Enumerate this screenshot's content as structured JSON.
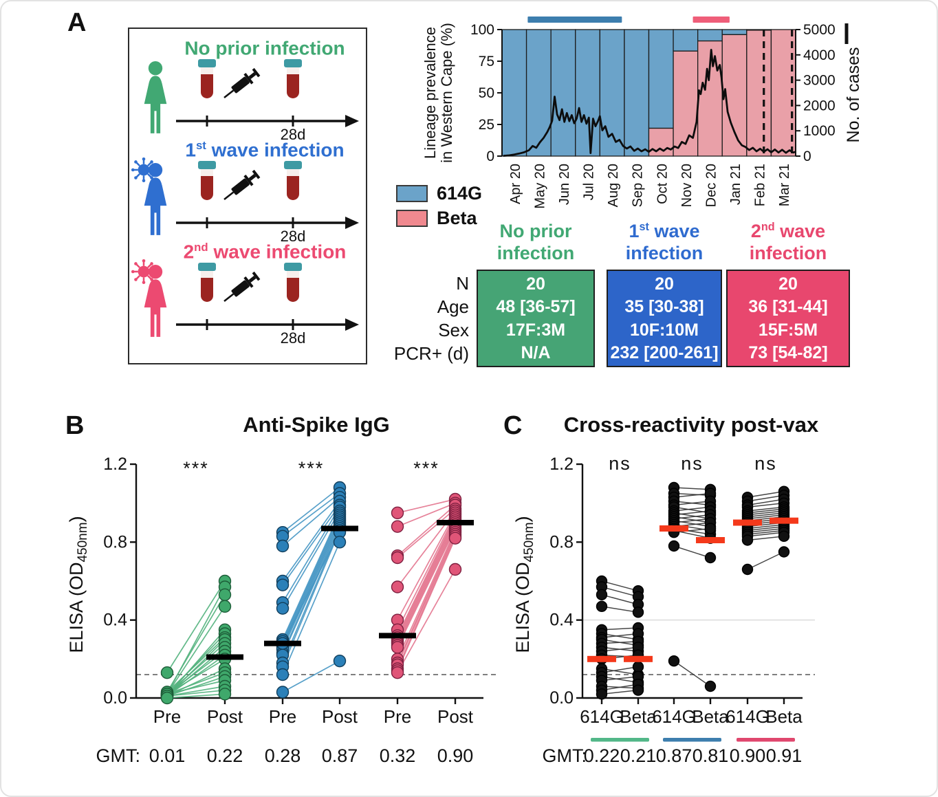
{
  "panels": {
    "a_label": "A",
    "b_label": "B",
    "c_label": "C"
  },
  "panel_a": {
    "groups": [
      {
        "title_pre": "No prior infection",
        "title_sup": "",
        "title_post": "",
        "color": "#41a873",
        "virus": false,
        "timeline_label": "28d"
      },
      {
        "title_pre": "1",
        "title_sup": "st",
        "title_post": " wave infection",
        "color": "#2f6fd0",
        "virus": true,
        "timeline_label": "28d"
      },
      {
        "title_pre": "2",
        "title_sup": "nd",
        "title_post": " wave infection",
        "color": "#ec4a71",
        "virus": true,
        "timeline_label": "28d"
      }
    ]
  },
  "legend": {
    "items": [
      {
        "label": "614G",
        "color": "#6ba3c9"
      },
      {
        "label": "Beta",
        "color": "#f0898f"
      }
    ]
  },
  "cohort_table": {
    "row_labels": [
      "N",
      "Age",
      "Sex",
      "PCR+ (d)"
    ],
    "columns": [
      {
        "h1_pre": "No prior",
        "h1_sup": "",
        "h1_post": "",
        "h2": "infection",
        "text_color": "#41a873",
        "box_color": "#46a475",
        "values": [
          "20",
          "48 [36-57]",
          "17F:3M",
          "N/A"
        ]
      },
      {
        "h1_pre": "1",
        "h1_sup": "st",
        "h1_post": " wave",
        "h2": "infection",
        "text_color": "#2f6bcf",
        "box_color": "#2d65c9",
        "values": [
          "20",
          "35 [30-38]",
          "10F:10M",
          "232 [200-261]"
        ]
      },
      {
        "h1_pre": "2",
        "h1_sup": "nd",
        "h1_post": " wave",
        "h2": "infection",
        "text_color": "#e8476e",
        "box_color": "#e8476e",
        "values": [
          "20",
          "36 [31-44]",
          "15F:5M",
          "73 [54-82]"
        ]
      }
    ]
  },
  "chart_data": [
    {
      "id": "prevalence",
      "type": "bar+line",
      "ylabel_left_lines": [
        "Lineage prevalence",
        "in Western Cape  (%)"
      ],
      "ylabel_right": "No. of cases",
      "yleft_ticks": [
        0,
        25,
        50,
        75,
        100
      ],
      "yright_ticks": [
        0,
        1000,
        2000,
        3000,
        4000,
        5000
      ],
      "yleft_lim": [
        0,
        100
      ],
      "yright_lim": [
        0,
        5000
      ],
      "categories": [
        "Apr 20",
        "May 20",
        "Jun 20",
        "Jul 20",
        "Aug 20",
        "Sep 20",
        "Oct 20",
        "Nov 20",
        "Dec 20",
        "Jan 21",
        "Feb 21",
        "Mar 21"
      ],
      "series": [
        {
          "name": "614G",
          "color": "#6ba3c9",
          "values": [
            100,
            100,
            100,
            100,
            100,
            100,
            78,
            17,
            9,
            4,
            0.5,
            0
          ]
        },
        {
          "name": "Beta",
          "color": "#e9a0a8",
          "values": [
            0,
            0,
            0,
            0,
            0,
            0,
            22,
            83,
            91,
            96,
            99.5,
            100
          ]
        }
      ],
      "wave_spans": [
        {
          "name": "1st wave",
          "color": "#3d7eae",
          "from": 1.05,
          "to": 4.9
        },
        {
          "name": "2nd wave",
          "color": "#ef5e79",
          "from": 7.8,
          "to": 9.3
        }
      ],
      "dashed_verticals": [
        10.7,
        11.85
      ],
      "cases_line": [
        [
          0.05,
          10
        ],
        [
          0.3,
          30
        ],
        [
          0.5,
          60
        ],
        [
          0.7,
          100
        ],
        [
          0.9,
          150
        ],
        [
          1.1,
          230
        ],
        [
          1.25,
          400
        ],
        [
          1.4,
          330
        ],
        [
          1.55,
          550
        ],
        [
          1.7,
          720
        ],
        [
          1.85,
          950
        ],
        [
          1.95,
          1150
        ],
        [
          2.05,
          1400
        ],
        [
          2.15,
          2350
        ],
        [
          2.25,
          1650
        ],
        [
          2.35,
          1420
        ],
        [
          2.45,
          1850
        ],
        [
          2.55,
          1350
        ],
        [
          2.65,
          1700
        ],
        [
          2.75,
          1380
        ],
        [
          2.85,
          1620
        ],
        [
          2.95,
          1300
        ],
        [
          3.05,
          1480
        ],
        [
          3.15,
          1900
        ],
        [
          3.25,
          1350
        ],
        [
          3.35,
          1620
        ],
        [
          3.45,
          1280
        ],
        [
          3.55,
          1520
        ],
        [
          3.62,
          120
        ],
        [
          3.72,
          1480
        ],
        [
          3.82,
          1180
        ],
        [
          3.92,
          1380
        ],
        [
          4.0,
          1580
        ],
        [
          4.1,
          1020
        ],
        [
          4.22,
          1180
        ],
        [
          4.35,
          760
        ],
        [
          4.5,
          880
        ],
        [
          4.65,
          560
        ],
        [
          4.8,
          640
        ],
        [
          4.95,
          400
        ],
        [
          5.1,
          300
        ],
        [
          5.25,
          380
        ],
        [
          5.4,
          210
        ],
        [
          5.55,
          300
        ],
        [
          5.7,
          190
        ],
        [
          5.85,
          270
        ],
        [
          6.0,
          170
        ],
        [
          6.15,
          280
        ],
        [
          6.3,
          190
        ],
        [
          6.45,
          300
        ],
        [
          6.6,
          210
        ],
        [
          6.75,
          320
        ],
        [
          6.9,
          260
        ],
        [
          7.05,
          380
        ],
        [
          7.2,
          320
        ],
        [
          7.35,
          560
        ],
        [
          7.5,
          480
        ],
        [
          7.65,
          820
        ],
        [
          7.8,
          720
        ],
        [
          7.95,
          1350
        ],
        [
          8.05,
          2600
        ],
        [
          8.12,
          2450
        ],
        [
          8.2,
          2900
        ],
        [
          8.3,
          2620
        ],
        [
          8.38,
          3450
        ],
        [
          8.45,
          3000
        ],
        [
          8.55,
          4200
        ],
        [
          8.62,
          3550
        ],
        [
          8.7,
          3950
        ],
        [
          8.8,
          3380
        ],
        [
          8.9,
          3600
        ],
        [
          8.97,
          3100
        ],
        [
          9.05,
          2250
        ],
        [
          9.12,
          2650
        ],
        [
          9.22,
          1750
        ],
        [
          9.35,
          1320
        ],
        [
          9.5,
          950
        ],
        [
          9.65,
          620
        ],
        [
          9.8,
          430
        ],
        [
          9.95,
          360
        ],
        [
          10.1,
          240
        ],
        [
          10.25,
          330
        ],
        [
          10.4,
          190
        ],
        [
          10.55,
          290
        ],
        [
          10.7,
          170
        ],
        [
          10.85,
          270
        ],
        [
          11.0,
          150
        ],
        [
          11.15,
          260
        ],
        [
          11.3,
          140
        ],
        [
          11.45,
          250
        ],
        [
          11.6,
          130
        ],
        [
          11.75,
          230
        ],
        [
          11.9,
          140
        ],
        [
          12.0,
          170
        ]
      ]
    },
    {
      "id": "anti_spike",
      "type": "paired-scatter",
      "title": "Anti-Spike IgG",
      "ylabel_parts": [
        "ELISA (OD",
        "450nm",
        ")"
      ],
      "ylim": [
        0,
        1.2
      ],
      "yticks": [
        "0.0",
        "0.4",
        "0.8",
        "1.2"
      ],
      "threshold": 0.12,
      "sig_labels": [
        "***",
        "***",
        "***"
      ],
      "x_labels": [
        "Pre",
        "Post",
        "Pre",
        "Post",
        "Pre",
        "Post"
      ],
      "gmt_label": "GMT:",
      "gmt_values": [
        "0.01",
        "0.22",
        "0.28",
        "0.87",
        "0.32",
        "0.90"
      ],
      "groups": [
        {
          "name": "No prior infection",
          "dot": "#3fa86b",
          "edge": "#1d5c38",
          "line": "#52b27d",
          "medians": [
            null,
            0.21
          ],
          "pairs": [
            [
              0.13,
              0.6
            ],
            [
              0.02,
              0.57
            ],
            [
              0.03,
              0.53
            ],
            [
              0.02,
              0.47
            ],
            [
              0.01,
              0.35
            ],
            [
              0.02,
              0.33
            ],
            [
              0.03,
              0.31
            ],
            [
              0.01,
              0.3
            ],
            [
              0.02,
              0.28
            ],
            [
              0.01,
              0.26
            ],
            [
              0.02,
              0.24
            ],
            [
              0.01,
              0.22
            ],
            [
              0.02,
              0.2
            ],
            [
              0.01,
              0.15
            ],
            [
              0.02,
              0.13
            ],
            [
              0.01,
              0.11
            ],
            [
              0.02,
              0.09
            ],
            [
              0.01,
              0.06
            ],
            [
              0.01,
              0.04
            ],
            [
              0.0,
              0.02
            ]
          ]
        },
        {
          "name": "1st wave infection",
          "dot": "#2b80b8",
          "edge": "#123f5c",
          "line": "#4596c4",
          "medians": [
            0.28,
            0.87
          ],
          "pairs": [
            [
              0.85,
              1.08
            ],
            [
              0.83,
              1.05
            ],
            [
              0.78,
              1.03
            ],
            [
              0.6,
              1.01
            ],
            [
              0.58,
              0.99
            ],
            [
              0.49,
              0.98
            ],
            [
              0.46,
              0.96
            ],
            [
              0.3,
              0.95
            ],
            [
              0.29,
              0.94
            ],
            [
              0.28,
              0.93
            ],
            [
              0.27,
              0.92
            ],
            [
              0.26,
              0.91
            ],
            [
              0.25,
              0.9
            ],
            [
              0.23,
              0.89
            ],
            [
              0.22,
              0.88
            ],
            [
              0.18,
              0.87
            ],
            [
              0.16,
              0.86
            ],
            [
              0.28,
              0.85
            ],
            [
              0.12,
              0.8
            ],
            [
              0.03,
              0.19
            ]
          ]
        },
        {
          "name": "2nd wave infection",
          "dot": "#e05578",
          "edge": "#7e2040",
          "line": "#e4758f",
          "medians": [
            0.32,
            0.9
          ],
          "pairs": [
            [
              0.95,
              1.02
            ],
            [
              0.88,
              1.0
            ],
            [
              0.73,
              0.99
            ],
            [
              0.72,
              0.97
            ],
            [
              0.57,
              0.96
            ],
            [
              0.4,
              0.95
            ],
            [
              0.35,
              0.94
            ],
            [
              0.32,
              0.93
            ],
            [
              0.31,
              0.92
            ],
            [
              0.3,
              0.91
            ],
            [
              0.29,
              0.9
            ],
            [
              0.28,
              0.89
            ],
            [
              0.27,
              0.88
            ],
            [
              0.26,
              0.87
            ],
            [
              0.2,
              0.86
            ],
            [
              0.18,
              0.85
            ],
            [
              0.17,
              0.84
            ],
            [
              0.15,
              0.83
            ],
            [
              0.14,
              0.82
            ],
            [
              0.13,
              0.66
            ]
          ]
        }
      ]
    },
    {
      "id": "cross_reactivity",
      "type": "paired-scatter",
      "title": "Cross-reactivity post-vax",
      "ylabel_parts": [
        "ELISA (OD",
        "450nm",
        ")"
      ],
      "ylim": [
        0,
        1.2
      ],
      "yticks": [
        "0.0",
        "0.4",
        "0.8",
        "1.2"
      ],
      "threshold": 0.12,
      "gray_line": 0.4,
      "median_color": "#f4391b",
      "sig_labels": [
        "ns",
        "ns",
        "ns"
      ],
      "x_labels": [
        "614G",
        "Beta",
        "614G",
        "Beta",
        "614G",
        "Beta"
      ],
      "gmt_label": "GMT:",
      "gmt_values": [
        "0.22",
        "0.21",
        "0.87",
        "0.81",
        "0.90",
        "0.91"
      ],
      "groups": [
        {
          "name": "No prior infection",
          "dot": "#111111",
          "edge": "#000000",
          "line": "#333333",
          "underline": "#52b788",
          "medians": [
            0.2,
            0.2
          ],
          "pairs": [
            [
              0.6,
              0.55
            ],
            [
              0.57,
              0.52
            ],
            [
              0.53,
              0.48
            ],
            [
              0.47,
              0.44
            ],
            [
              0.35,
              0.36
            ],
            [
              0.33,
              0.3
            ],
            [
              0.31,
              0.33
            ],
            [
              0.3,
              0.27
            ],
            [
              0.28,
              0.29
            ],
            [
              0.26,
              0.24
            ],
            [
              0.24,
              0.26
            ],
            [
              0.22,
              0.21
            ],
            [
              0.2,
              0.22
            ],
            [
              0.15,
              0.12
            ],
            [
              0.13,
              0.16
            ],
            [
              0.11,
              0.08
            ],
            [
              0.09,
              0.11
            ],
            [
              0.06,
              0.05
            ],
            [
              0.04,
              0.07
            ],
            [
              0.02,
              0.04
            ]
          ]
        },
        {
          "name": "1st wave infection",
          "dot": "#111111",
          "edge": "#000000",
          "line": "#333333",
          "underline": "#3d7eae",
          "medians": [
            0.87,
            0.81
          ],
          "pairs": [
            [
              1.08,
              1.07
            ],
            [
              1.05,
              1.04
            ],
            [
              1.03,
              1.05
            ],
            [
              1.01,
              0.99
            ],
            [
              0.99,
              1.01
            ],
            [
              0.98,
              0.95
            ],
            [
              0.96,
              0.98
            ],
            [
              0.95,
              0.92
            ],
            [
              0.94,
              0.96
            ],
            [
              0.93,
              0.9
            ],
            [
              0.92,
              0.94
            ],
            [
              0.91,
              0.88
            ],
            [
              0.9,
              0.92
            ],
            [
              0.89,
              0.86
            ],
            [
              0.88,
              0.9
            ],
            [
              0.87,
              0.84
            ],
            [
              0.86,
              0.82
            ],
            [
              0.85,
              0.87
            ],
            [
              0.78,
              0.72
            ],
            [
              0.19,
              0.06
            ]
          ]
        },
        {
          "name": "2nd wave infection",
          "dot": "#111111",
          "edge": "#000000",
          "line": "#333333",
          "underline": "#e0476e",
          "medians": [
            0.9,
            0.91
          ],
          "pairs": [
            [
              1.03,
              1.06
            ],
            [
              1.01,
              1.04
            ],
            [
              0.99,
              1.02
            ],
            [
              0.98,
              1.0
            ],
            [
              0.96,
              0.98
            ],
            [
              0.95,
              0.97
            ],
            [
              0.94,
              0.96
            ],
            [
              0.93,
              0.95
            ],
            [
              0.92,
              0.94
            ],
            [
              0.91,
              0.93
            ],
            [
              0.9,
              0.92
            ],
            [
              0.89,
              0.91
            ],
            [
              0.88,
              0.9
            ],
            [
              0.87,
              0.89
            ],
            [
              0.86,
              0.88
            ],
            [
              0.85,
              0.87
            ],
            [
              0.84,
              0.86
            ],
            [
              0.83,
              0.85
            ],
            [
              0.81,
              0.83
            ],
            [
              0.66,
              0.75
            ]
          ]
        }
      ]
    }
  ]
}
